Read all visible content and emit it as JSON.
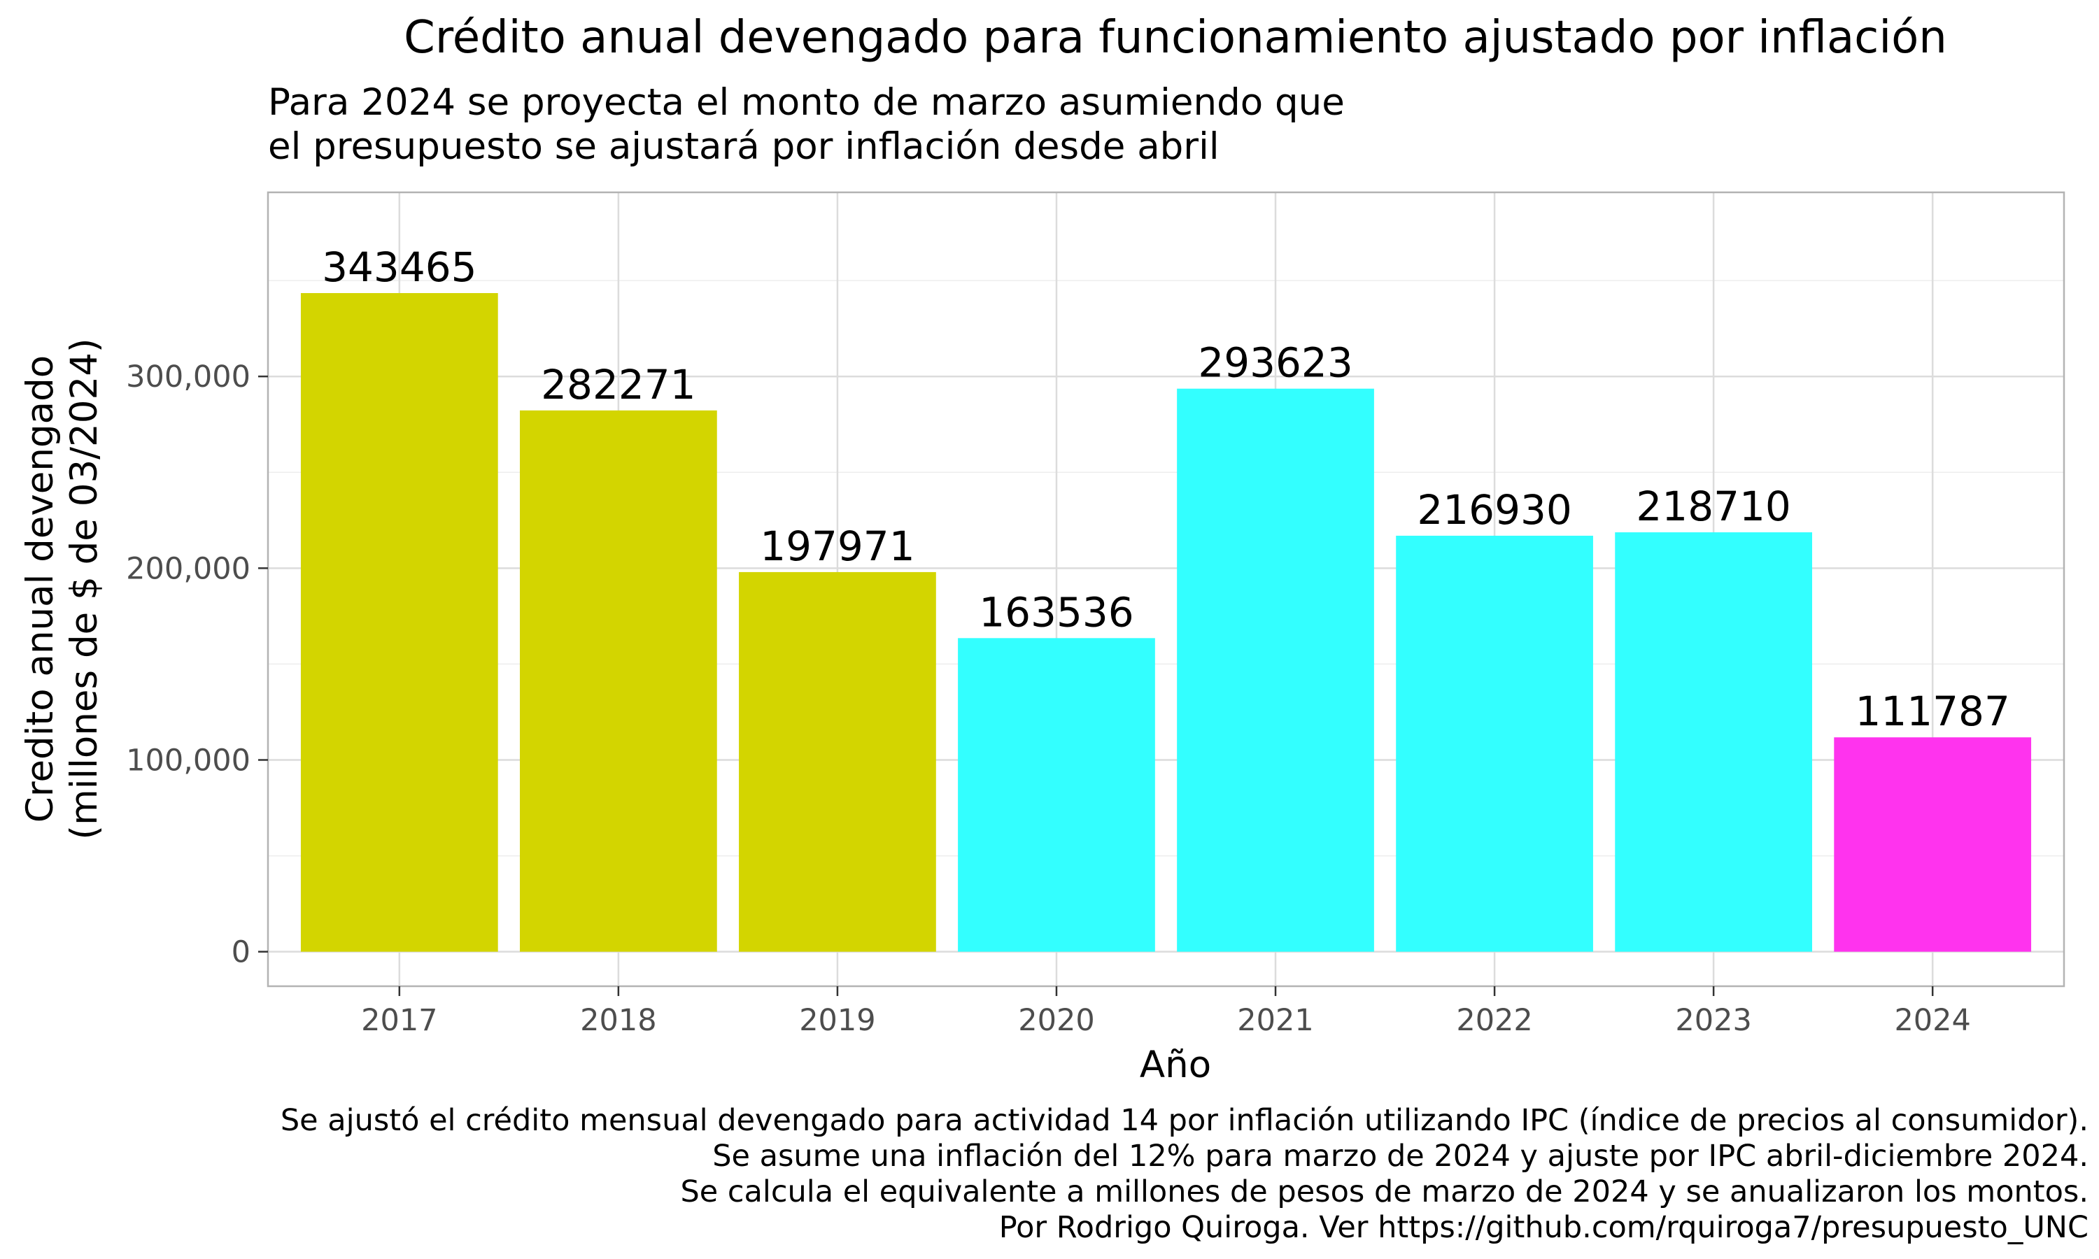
{
  "chart_data": {
    "type": "bar",
    "title": "Crédito anual devengado para funcionamiento ajustado por inflación",
    "subtitle": [
      "Para 2024 se proyecta el monto de marzo asumiendo que",
      "el presupuesto se ajustará por inflación desde abril"
    ],
    "xlabel": "Año",
    "ylabel": [
      "Credito anual devengado",
      "(millones de $ de 03/2024)"
    ],
    "categories": [
      "2017",
      "2018",
      "2019",
      "2020",
      "2021",
      "2022",
      "2023",
      "2024"
    ],
    "values": [
      343465,
      282271,
      197971,
      163536,
      293623,
      216930,
      218710,
      111787
    ],
    "data_labels": [
      "343465",
      "282271",
      "197971",
      "163536",
      "293623",
      "216930",
      "218710",
      "111787"
    ],
    "bar_colors": [
      "#d3d500",
      "#d3d500",
      "#d3d500",
      "#33ffff",
      "#33ffff",
      "#33ffff",
      "#33ffff",
      "#ff33ee"
    ],
    "ylim": [
      -18000,
      396000
    ],
    "yticks": [
      0,
      100000,
      200000,
      300000
    ],
    "ytick_labels": [
      "0",
      "100,000",
      "200,000",
      "300,000"
    ],
    "grid": true,
    "legend": "none",
    "caption": [
      "Se ajustó el crédito mensual devengado para actividad 14 por inflación utilizando IPC (índice de precios al consumidor).",
      "Se asume una inflación del 12% para marzo de 2024 y ajuste por IPC abril-diciembre 2024.",
      "Se calcula el equivalente a millones de pesos de marzo de 2024 y se anualizaron los montos.",
      "Por Rodrigo Quiroga. Ver https://github.com/rquiroga7/presupuesto_UNC"
    ]
  }
}
